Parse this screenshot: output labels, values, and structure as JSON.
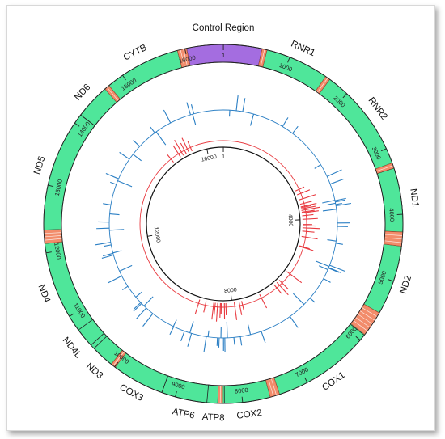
{
  "total_length": 16569,
  "colors": {
    "gene": "#4fe69a",
    "trna": "#f28c6b",
    "control": "#a46de0",
    "outline": "#222222",
    "blue_track": "#2b7fc4",
    "red_track": "#e8393f",
    "inner_circle": "#111111"
  },
  "genes": [
    {
      "name": "RNR1",
      "start": 648,
      "end": 1601
    },
    {
      "name": "RNR2",
      "start": 1671,
      "end": 3229
    },
    {
      "name": "ND1",
      "start": 3307,
      "end": 4262
    },
    {
      "name": "ND2",
      "start": 4470,
      "end": 5511
    },
    {
      "name": "COX1",
      "start": 5904,
      "end": 7445
    },
    {
      "name": "COX2",
      "start": 7586,
      "end": 8269
    },
    {
      "name": "ATP8",
      "start": 8366,
      "end": 8572
    },
    {
      "name": "ATP6",
      "start": 8527,
      "end": 9207
    },
    {
      "name": "COX3",
      "start": 9207,
      "end": 9990
    },
    {
      "name": "ND3",
      "start": 10059,
      "end": 10404
    },
    {
      "name": "ND4L",
      "start": 10470,
      "end": 10766
    },
    {
      "name": "ND4",
      "start": 10760,
      "end": 12137
    },
    {
      "name": "ND5",
      "start": 12337,
      "end": 14148
    },
    {
      "name": "ND6",
      "start": 14149,
      "end": 14673
    },
    {
      "name": "CYTB",
      "start": 14747,
      "end": 15887
    }
  ],
  "control_region": {
    "name": "Control Region",
    "start": 16024,
    "end": 576
  },
  "trnas": [
    {
      "start": 577,
      "end": 647
    },
    {
      "start": 1602,
      "end": 1670
    },
    {
      "start": 3230,
      "end": 3304
    },
    {
      "start": 4263,
      "end": 4469
    },
    {
      "start": 5512,
      "end": 5891
    },
    {
      "start": 7446,
      "end": 7585
    },
    {
      "start": 8295,
      "end": 8364
    },
    {
      "start": 9991,
      "end": 10058
    },
    {
      "start": 12138,
      "end": 12336
    },
    {
      "start": 14674,
      "end": 14746
    },
    {
      "start": 15888,
      "end": 16023
    }
  ],
  "outer_ticks": [
    "1",
    "1000",
    "2000",
    "3000",
    "4000",
    "5000",
    "6000",
    "7000",
    "8000",
    "9000",
    "10000",
    "11000",
    "12000",
    "13000",
    "14000",
    "15000",
    "16000"
  ],
  "inner_ticks": [
    "1",
    "4000",
    "8000",
    "12000",
    "16000"
  ],
  "blue_variants": [
    150,
    300,
    450,
    710,
    1440,
    1720,
    2700,
    3010,
    3200,
    3590,
    3600,
    3630,
    3660,
    3690,
    3720,
    3800,
    4120,
    4200,
    4540,
    4590,
    5120,
    5150,
    5180,
    5190,
    5230,
    5460,
    6010,
    6210,
    6640,
    7390,
    7650,
    7890,
    8040,
    8190,
    8250,
    8280,
    8340,
    8380,
    8420,
    8640,
    8680,
    9030,
    9070,
    9200,
    9470,
    9480,
    10040,
    10240,
    10310,
    10390,
    10420,
    10590,
    10900,
    11180,
    11300,
    11700,
    11740,
    11750,
    11940,
    12000,
    12280,
    12330,
    12470,
    12660,
    12870,
    13360,
    13450,
    13500,
    14020,
    14160,
    14400,
    14870,
    14910,
    15300,
    15800,
    15850,
    15880
  ],
  "red_variants": [
    3010,
    3150,
    3330,
    3480,
    3570,
    3600,
    3640,
    3690,
    3750,
    3780,
    3870,
    3990,
    4160,
    4200,
    4270,
    4380,
    4560,
    4880,
    4900,
    5840,
    6220,
    6330,
    6450,
    7030,
    7670,
    7760,
    7920,
    8200,
    8250,
    8350,
    8380,
    8470,
    8550,
    8600,
    8860,
    9080,
    14780,
    15070,
    15180,
    15290,
    15390,
    15500
  ]
}
